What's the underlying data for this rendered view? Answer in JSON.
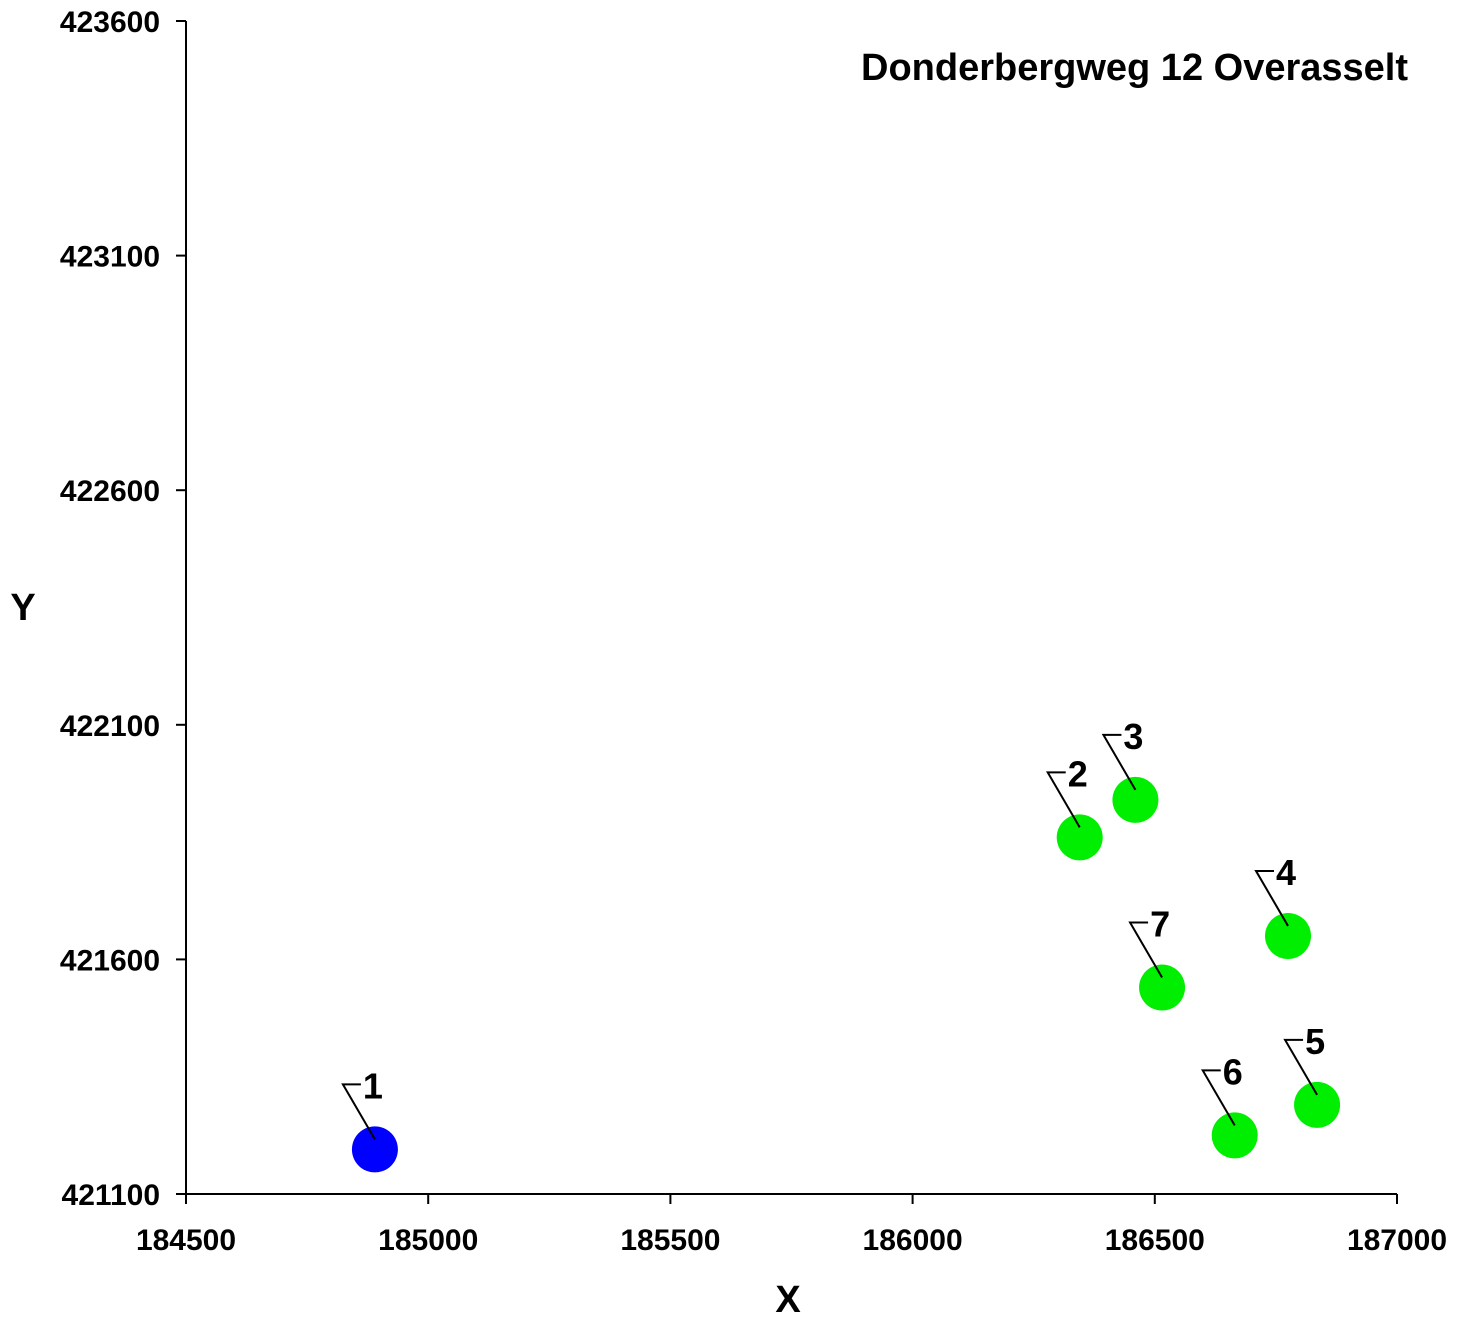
{
  "chart_data": {
    "type": "scatter",
    "title": "Donderbergweg 12 Overasselt",
    "xlabel": "X",
    "ylabel": "Y",
    "xlim": [
      184500,
      187000
    ],
    "ylim": [
      421100,
      423600
    ],
    "xticks": [
      184500,
      185000,
      185500,
      186000,
      186500,
      187000
    ],
    "yticks": [
      421100,
      421600,
      422100,
      422600,
      423100,
      423600
    ],
    "xtick_labels": [
      "184500",
      "185000",
      "185500",
      "186000",
      "186500",
      "187000"
    ],
    "ytick_labels": [
      "421100",
      "421600",
      "422100",
      "422600",
      "423100",
      "423600"
    ],
    "grid": false,
    "points": [
      {
        "label": "1",
        "x": 184890,
        "y": 421195,
        "color": "#0000ff"
      },
      {
        "label": "2",
        "x": 186345,
        "y": 421860,
        "color": "#00ee00"
      },
      {
        "label": "3",
        "x": 186460,
        "y": 421940,
        "color": "#00ee00"
      },
      {
        "label": "4",
        "x": 186775,
        "y": 421650,
        "color": "#00ee00"
      },
      {
        "label": "5",
        "x": 186835,
        "y": 421290,
        "color": "#00ee00"
      },
      {
        "label": "6",
        "x": 186665,
        "y": 421225,
        "color": "#00ee00"
      },
      {
        "label": "7",
        "x": 186515,
        "y": 421540,
        "color": "#00ee00"
      }
    ]
  }
}
